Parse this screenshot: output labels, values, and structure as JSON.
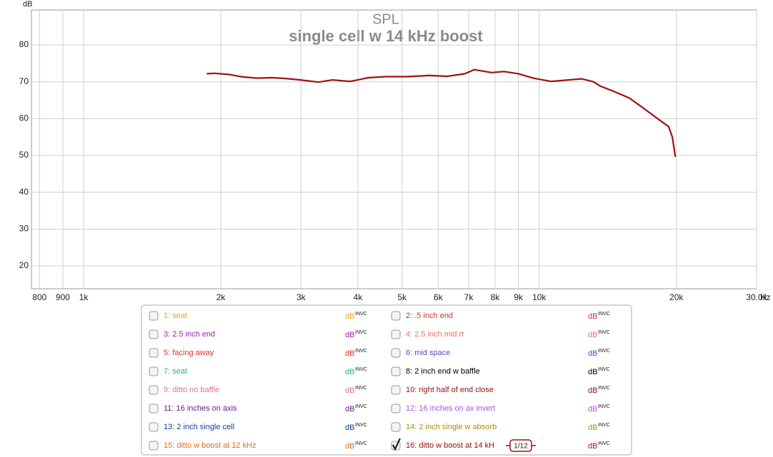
{
  "chart_data": {
    "type": "line",
    "title": "SPL",
    "subtitle": "single cell w 14 kHz boost",
    "y_label": "dB",
    "x_unit": "Hz",
    "log_x": true,
    "grid": true,
    "xlim": [
      768,
      30000
    ],
    "ylim": [
      13.8,
      89.5
    ],
    "xticks": [
      800,
      900,
      {
        "value": 1000,
        "label": "1k"
      },
      {
        "value": 2000,
        "label": "2k"
      },
      {
        "value": 3000,
        "label": "3k"
      },
      {
        "value": 4000,
        "label": "4k"
      },
      {
        "value": 5000,
        "label": "5k"
      },
      {
        "value": 6000,
        "label": "6k"
      },
      {
        "value": 7000,
        "label": "7k"
      },
      {
        "value": 8000,
        "label": "8k"
      },
      {
        "value": 9000,
        "label": "9k"
      },
      {
        "value": 10000,
        "label": "10k"
      },
      {
        "value": 20000,
        "label": "20k"
      },
      {
        "value": 30000,
        "label": "30.0k"
      }
    ],
    "yticks": [
      20,
      30,
      40,
      50,
      60,
      70,
      80
    ],
    "x": [
      1862,
      1937,
      2082,
      2240,
      2407,
      2587,
      2780,
      2989,
      3276,
      3519,
      3847,
      4215,
      4612,
      5142,
      5736,
      6283,
      6870,
      7203,
      7865,
      8365,
      9000,
      9700,
      10610,
      11840,
      12400,
      13150,
      13630,
      14650,
      15760,
      16950,
      18230,
      19240,
      19600,
      19900
    ],
    "legend_unit": "dB",
    "legend_tag": "INVC",
    "smoothing": "1/12",
    "series": [
      {
        "name": "1: seat",
        "color": "#e8a020",
        "checked": false
      },
      {
        "name": "2: .5 inch end",
        "color": "#d03030",
        "checked": false
      },
      {
        "name": "3: 2.5 inch end",
        "color": "#a020b0",
        "checked": false
      },
      {
        "name": "4: 2.5 inch mid rt",
        "color": "#e87060",
        "checked": false
      },
      {
        "name": "5: facing away",
        "color": "#e03030",
        "checked": false
      },
      {
        "name": "6: mid space",
        "color": "#6040d0",
        "checked": false
      },
      {
        "name": "7: seat",
        "color": "#20b0a0",
        "checked": false
      },
      {
        "name": "8: 2 inch end  w baffle",
        "color": "#000000",
        "checked": false
      },
      {
        "name": "9: ditto no baffle",
        "color": "#e070a0",
        "checked": false
      },
      {
        "name": "10: right half of end close",
        "color": "#901010",
        "checked": false
      },
      {
        "name": "11: 16 inches on axis",
        "color": "#6a1a8a",
        "checked": false
      },
      {
        "name": "12: 16 inches on ax invert",
        "color": "#b050e0",
        "checked": false
      },
      {
        "name": "13: 2 inch single cell",
        "color": "#1040a0",
        "checked": false
      },
      {
        "name": "14: 2 inch single w absorb",
        "color": "#a09010",
        "checked": false
      },
      {
        "name": "15: ditto w boost at 12 kHz",
        "color": "#e07010",
        "checked": false
      },
      {
        "name": "16: ditto w boost at 14 kH",
        "color": "#a01010",
        "checked": true,
        "values": [
          72.2,
          72.3,
          72.0,
          71.3,
          71.0,
          71.1,
          70.9,
          70.5,
          69.9,
          70.5,
          70.1,
          71.1,
          71.4,
          71.4,
          71.7,
          71.5,
          72.2,
          73.3,
          72.5,
          72.8,
          72.2,
          71.0,
          70.1,
          70.6,
          70.8,
          70.0,
          68.8,
          67.3,
          65.6,
          62.8,
          59.9,
          57.8,
          55.0,
          49.6
        ]
      }
    ]
  }
}
